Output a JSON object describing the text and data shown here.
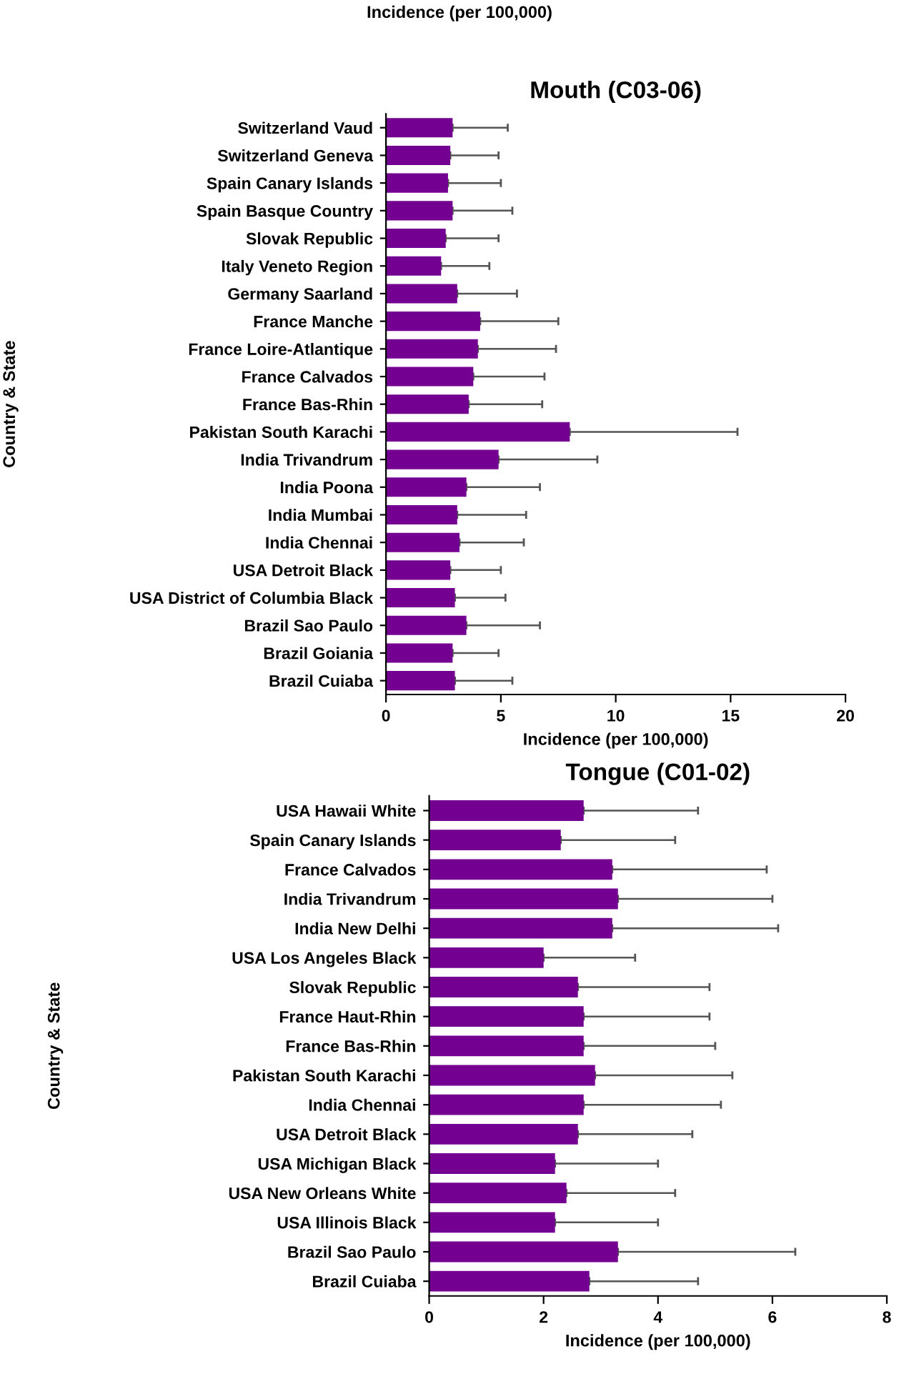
{
  "chart_data": [
    {
      "type": "bar",
      "orientation": "horizontal",
      "title": "Mouth (C03-06)",
      "xlabel": "Incidence (per 100,000)",
      "ylabel": "Country & State",
      "annotations": [
        "Incidence (per 100,000)"
      ],
      "categories": [
        "Switzerland Vaud",
        "Switzerland Geneva",
        "Spain Canary Islands",
        "Spain Basque Country",
        "Slovak Republic",
        "Italy Veneto Region",
        "Germany Saarland",
        "France Manche",
        "France Loire-Atlantique",
        "France Calvados",
        "France Bas-Rhin",
        "Pakistan South Karachi",
        "India Trivandrum",
        "India Poona",
        "India Mumbai",
        "India Chennai",
        "USA Detroit Black",
        "USA District of Columbia Black",
        "Brazil Sao Paulo",
        "Brazil Goiania",
        "Brazil Cuiaba"
      ],
      "values": [
        2.9,
        2.8,
        2.7,
        2.9,
        2.6,
        2.4,
        3.1,
        4.1,
        4.0,
        3.8,
        3.6,
        8.0,
        4.9,
        3.5,
        3.1,
        3.2,
        2.8,
        3.0,
        3.5,
        2.9,
        3.0
      ],
      "errors": [
        [
          2.9,
          5.3
        ],
        [
          2.8,
          4.9
        ],
        [
          2.7,
          5.0
        ],
        [
          2.9,
          5.5
        ],
        [
          2.6,
          4.9
        ],
        [
          2.4,
          4.5
        ],
        [
          3.1,
          5.7
        ],
        [
          4.1,
          7.5
        ],
        [
          4.0,
          7.4
        ],
        [
          3.8,
          6.9
        ],
        [
          3.6,
          6.8
        ],
        [
          8.0,
          15.3
        ],
        [
          4.9,
          9.2
        ],
        [
          3.5,
          6.7
        ],
        [
          3.1,
          6.1
        ],
        [
          3.2,
          6.0
        ],
        [
          2.8,
          5.0
        ],
        [
          3.0,
          5.2
        ],
        [
          3.5,
          6.7
        ],
        [
          2.9,
          4.9
        ],
        [
          3.0,
          5.5
        ]
      ],
      "color": "#730091",
      "xlim": [
        0,
        20
      ],
      "xticks": [
        0,
        5,
        10,
        15,
        20
      ],
      "grid": false,
      "legend": false
    },
    {
      "type": "bar",
      "orientation": "horizontal",
      "title": "Tongue (C01-02)",
      "xlabel": "Incidence (per 100,000)",
      "ylabel": "Country & State",
      "categories": [
        "USA Hawaii White",
        "Spain Canary Islands",
        "France Calvados",
        "India Trivandrum",
        "India New Delhi",
        "USA Los Angeles Black",
        "Slovak Republic",
        "France Haut-Rhin",
        "France Bas-Rhin",
        "Pakistan South Karachi",
        "India Chennai",
        "USA Detroit Black",
        "USA Michigan Black",
        "USA New Orleans White",
        "USA Illinois Black",
        "Brazil Sao Paulo",
        "Brazil Cuiaba"
      ],
      "values": [
        2.7,
        2.3,
        3.2,
        3.3,
        3.2,
        2.0,
        2.6,
        2.7,
        2.7,
        2.9,
        2.7,
        2.6,
        2.2,
        2.4,
        2.2,
        3.3,
        2.8
      ],
      "errors": [
        [
          2.7,
          4.7
        ],
        [
          2.3,
          4.3
        ],
        [
          3.2,
          5.9
        ],
        [
          3.3,
          6.0
        ],
        [
          3.2,
          6.1
        ],
        [
          2.0,
          3.6
        ],
        [
          2.6,
          4.9
        ],
        [
          2.7,
          4.9
        ],
        [
          2.7,
          5.0
        ],
        [
          2.9,
          5.3
        ],
        [
          2.7,
          5.1
        ],
        [
          2.6,
          4.6
        ],
        [
          2.2,
          4.0
        ],
        [
          2.4,
          4.3
        ],
        [
          2.2,
          4.0
        ],
        [
          3.3,
          6.4
        ],
        [
          2.8,
          4.7
        ]
      ],
      "color": "#730091",
      "xlim": [
        0,
        8
      ],
      "xticks": [
        0,
        2,
        4,
        6,
        8
      ],
      "grid": false,
      "legend": false
    }
  ]
}
